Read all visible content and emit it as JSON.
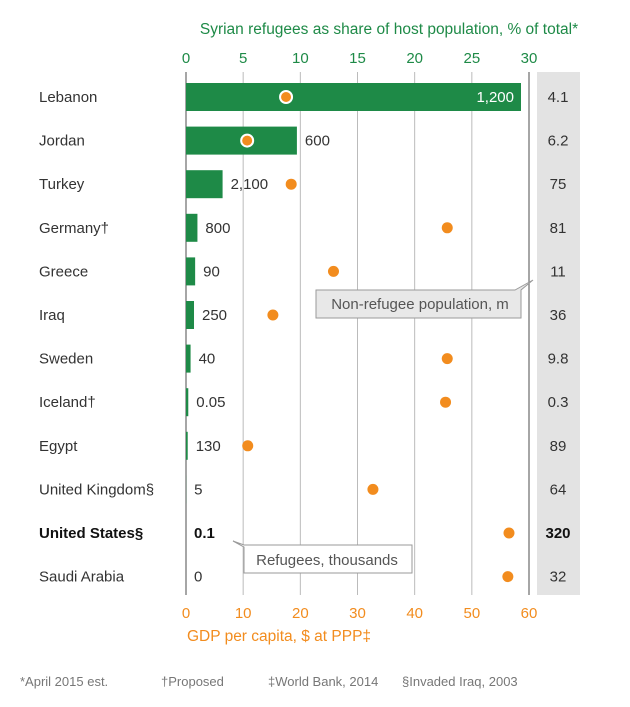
{
  "chart_data": {
    "type": "bar",
    "title": "Syrian refugees as share of host population, % of total*",
    "top_axis": {
      "label": "Syrian refugees as share of host population, % of total*",
      "range": [
        0,
        30
      ],
      "ticks": [
        "0",
        "5",
        "10",
        "15",
        "20",
        "25",
        "30"
      ]
    },
    "bottom_axis": {
      "label": "GDP per capita, $ at PPP‡",
      "range": [
        0,
        60
      ],
      "ticks": [
        "0",
        "10",
        "20",
        "30",
        "40",
        "50",
        "60"
      ]
    },
    "categories": [
      "Lebanon",
      "Jordan",
      "Turkey",
      "Germany†",
      "Greece",
      "Iraq",
      "Sweden",
      "Iceland†",
      "Egypt",
      "United Kingdom§",
      "United States§",
      "Saudi Arabia"
    ],
    "series": [
      {
        "name": "Syrian refugees as share of host population, %",
        "color": "#1e8a47",
        "values": [
          29.3,
          9.7,
          3.2,
          1.0,
          0.8,
          0.7,
          0.4,
          0.2,
          0.15,
          0.01,
          0.0,
          0.0
        ]
      },
      {
        "name": "GDP per capita, $ thousands at PPP",
        "color": "#f28c1e",
        "values": [
          17.5,
          10.7,
          18.4,
          45.7,
          25.8,
          15.2,
          45.7,
          45.4,
          10.8,
          32.7,
          56.5,
          56.3
        ]
      }
    ],
    "refugee_labels": [
      "1,200",
      "600",
      "2,100",
      "800",
      "90",
      "250",
      "40",
      "0.05",
      "130",
      "5",
      "0.1",
      "0"
    ],
    "population_labels": [
      "4.1",
      "6.2",
      "75",
      "81",
      "11",
      "36",
      "9.8",
      "0.3",
      "89",
      "64",
      "320",
      "32"
    ],
    "highlight_category": "United States§",
    "annotations": {
      "population_callout": "Non-refugee population, m",
      "refugee_callout": "Refugees, thousands"
    },
    "footnotes": [
      "*April 2015 est.",
      "†Proposed",
      "‡World Bank, 2014",
      "§Invaded Iraq, 2003"
    ]
  },
  "colors": {
    "bar": "#1e8a47",
    "dot": "#f28c1e",
    "population_panel": "#e3e3e3",
    "grid": "#bbbbbb"
  }
}
